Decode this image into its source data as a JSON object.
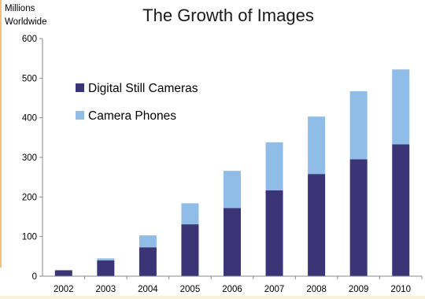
{
  "chart_data": {
    "type": "bar",
    "stacked": true,
    "title": "The Growth of Images",
    "ylabel_lines": [
      "Millions",
      "Worldwide"
    ],
    "categories": [
      "2002",
      "2003",
      "2004",
      "2005",
      "2006",
      "2007",
      "2008",
      "2009",
      "2010"
    ],
    "ylim": [
      0,
      600
    ],
    "yticks": [
      0,
      100,
      200,
      300,
      400,
      500,
      600
    ],
    "grid": false,
    "legend_position": "top-left",
    "series": [
      {
        "name": "Digital Still Cameras",
        "color": "#3b3577",
        "values": [
          15,
          40,
          73,
          131,
          172,
          217,
          258,
          295,
          333
        ]
      },
      {
        "name": "Camera Phones",
        "color": "#8fbde8",
        "values": [
          0,
          5,
          30,
          53,
          94,
          121,
          145,
          172,
          189
        ]
      }
    ]
  },
  "colors": {
    "axis": "#888888",
    "text": "#000000",
    "title": "#1a1a1a"
  }
}
